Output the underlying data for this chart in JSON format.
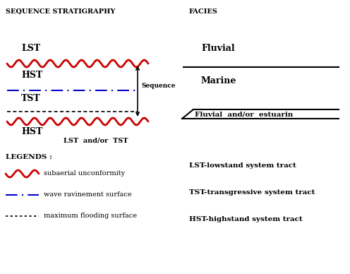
{
  "title_left": "SEQUENCE STRATIGRAPHY",
  "title_right": "FACIES",
  "background_color": "#ffffff",
  "red_color": "#cc0000",
  "blue_color": "#0000cc",
  "black_color": "#000000",
  "labels": {
    "LST_top": "LST",
    "HST_mid": "HST",
    "TST": "TST",
    "HST_bot": "HST",
    "LST_and_or_TST": "LST  and/or  TST",
    "Sequence": "Sequence",
    "LEGENDS": "LEGENDS :",
    "legend1_text": "subaerial unconformity",
    "legend2_text": "wave ravinement surface",
    "legend3_text": "maximum flooding surface",
    "facies_fluvial": "Fluvial",
    "facies_marine": "Marine",
    "facies_fluvial_estuarin": "Fluvial  and/or  estuarin",
    "lst_def": "LST-lowstand system tract",
    "tst_def": "TST-transgressive system tract",
    "hst_def": "HST-highstand system tract"
  }
}
